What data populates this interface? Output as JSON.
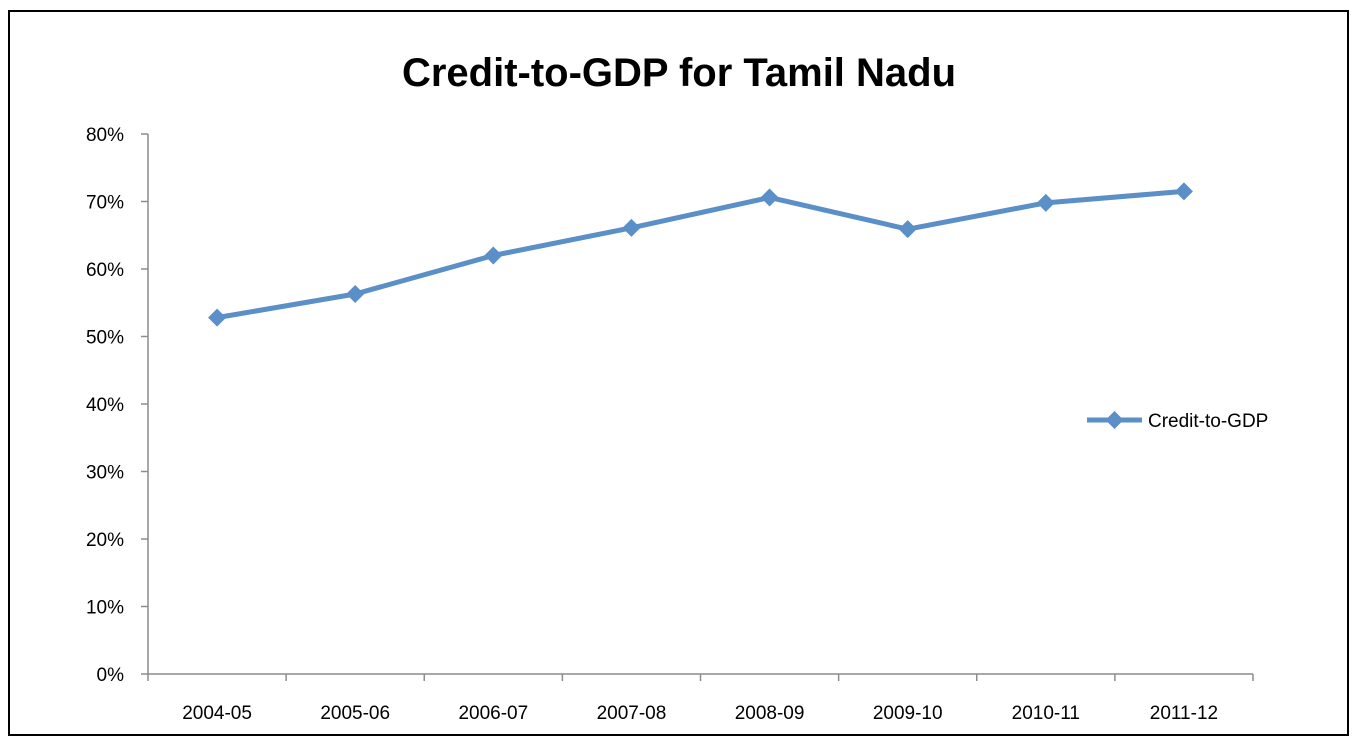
{
  "chart_data": {
    "type": "line",
    "title": "Credit-to-GDP for Tamil Nadu",
    "xlabel": "",
    "ylabel": "",
    "categories": [
      "2004-05",
      "2005-06",
      "2006-07",
      "2007-08",
      "2008-09",
      "2009-10",
      "2010-11",
      "2011-12"
    ],
    "series": [
      {
        "name": "Credit-to-GDP",
        "values": [
          52.8,
          56.3,
          62.0,
          66.1,
          70.6,
          65.9,
          69.8,
          71.5
        ],
        "color": "#5b8fc7"
      }
    ],
    "y_ticks": [
      "0%",
      "10%",
      "20%",
      "30%",
      "40%",
      "50%",
      "60%",
      "70%",
      "80%"
    ],
    "ylim": [
      0,
      80
    ],
    "grid": false,
    "legend_position": "right"
  }
}
